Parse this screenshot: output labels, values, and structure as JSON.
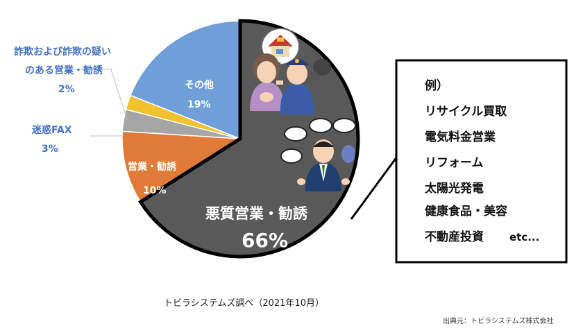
{
  "chart_data": {
    "type": "pie",
    "title": "",
    "caption": "トビラシステムズ調べ（2021年10月）",
    "slices": [
      {
        "label": "悪質営業・勧誘",
        "value": 66,
        "value_text": "66%",
        "color": "#595959"
      },
      {
        "label": "営業・勧誘",
        "value": 10,
        "value_text": "10%",
        "color": "#e07b39"
      },
      {
        "label": "迷惑FAX",
        "value": 3,
        "value_text": "3%",
        "color": "#a5a5a5"
      },
      {
        "label_lines": [
          "詐欺および詐欺の疑い",
          "のある営業・勧誘"
        ],
        "value": 2,
        "value_text": "2%",
        "color": "#f2c12e"
      },
      {
        "label": "その他",
        "value": 19,
        "value_text": "19%",
        "color": "#6f9fd8"
      }
    ],
    "example_box": {
      "lines": [
        "例）",
        "リサイクル買取",
        "電気料金営業",
        "リフォーム",
        "太陽光発電",
        "健康食品・美容",
        "不動産投資"
      ],
      "etc": "etc..."
    }
  },
  "source": "出典元：トビラシステムズ株式会社",
  "colors": {
    "outline": "#000000",
    "external_label": "#4472c4"
  },
  "icons": [
    "house-speech-icon",
    "worried-woman-icon",
    "police-officer-icon",
    "salesman-icon",
    "speech-bubbles-icon"
  ]
}
